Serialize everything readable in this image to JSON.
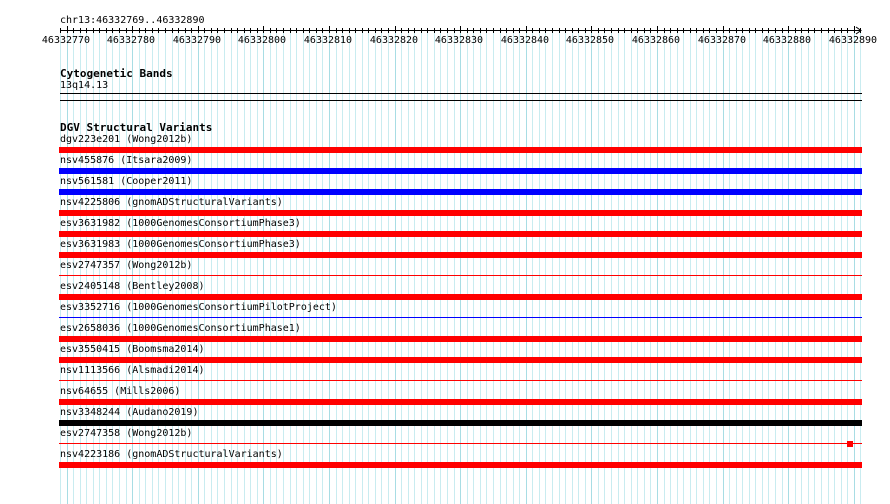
{
  "ruler": {
    "region": "chr13:46332769..46332890",
    "ticks": [
      "46332770",
      "46332780",
      "46332790",
      "46332800",
      "46332810",
      "46332820",
      "46332830",
      "46332840",
      "46332850",
      "46332860",
      "46332870",
      "46332880",
      "46332890"
    ]
  },
  "cytoband_track": {
    "title": "Cytogenetic Bands",
    "band": "13q14.13"
  },
  "dgv_track": {
    "title": "DGV Structural Variants",
    "colors": {
      "red": "#ff0000",
      "blue": "#0000ff",
      "black": "#000000"
    },
    "features": [
      {
        "label": "dgv223e201 (Wong2012b)",
        "color": "red",
        "style": "thick"
      },
      {
        "label": "nsv455876 (Itsara2009)",
        "color": "blue",
        "style": "thick"
      },
      {
        "label": "nsv561581 (Cooper2011)",
        "color": "blue",
        "style": "thick"
      },
      {
        "label": "nsv4225806 (gnomADStructuralVariants)",
        "color": "red",
        "style": "thick"
      },
      {
        "label": "esv3631982 (1000GenomesConsortiumPhase3)",
        "color": "red",
        "style": "thick"
      },
      {
        "label": "esv3631983 (1000GenomesConsortiumPhase3)",
        "color": "red",
        "style": "thick"
      },
      {
        "label": "esv2747357 (Wong2012b)",
        "color": "red",
        "style": "thin"
      },
      {
        "label": "esv2405148 (Bentley2008)",
        "color": "red",
        "style": "thick"
      },
      {
        "label": "esv3352716 (1000GenomesConsortiumPilotProject)",
        "color": "blue",
        "style": "thin"
      },
      {
        "label": "esv2658036 (1000GenomesConsortiumPhase1)",
        "color": "red",
        "style": "thick"
      },
      {
        "label": "esv3550415 (Boomsma2014)",
        "color": "red",
        "style": "thick"
      },
      {
        "label": "nsv1113566 (Alsmadi2014)",
        "color": "red",
        "style": "thin"
      },
      {
        "label": "nsv64655 (Mills2006)",
        "color": "red",
        "style": "thick"
      },
      {
        "label": "nsv3348244 (Audano2019)",
        "color": "black",
        "style": "thick"
      },
      {
        "label": "esv2747358 (Wong2012b)",
        "color": "red",
        "style": "thin-end"
      },
      {
        "label": "nsv4223186 (gnomADStructuralVariants)",
        "color": "red",
        "style": "thick"
      }
    ]
  }
}
